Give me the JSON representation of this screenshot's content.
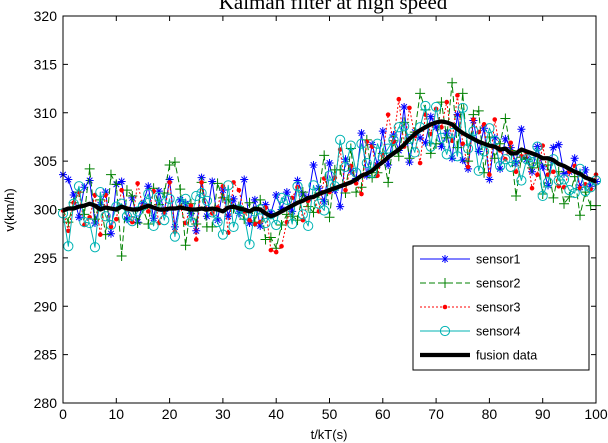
{
  "chart_data": {
    "type": "line",
    "title": "Kalman filter at high speed",
    "xlabel": "t/kT(s)",
    "ylabel": "v(km/h)",
    "xlim": [
      0,
      100
    ],
    "ylim": [
      280,
      320
    ],
    "xticks": [
      "0",
      "10",
      "20",
      "30",
      "40",
      "50",
      "60",
      "70",
      "80",
      "90",
      "100"
    ],
    "yticks": [
      "280",
      "285",
      "290",
      "295",
      "300",
      "305",
      "310",
      "315",
      "320"
    ],
    "grid": false,
    "legend_position": "bottom-right",
    "x": [
      0,
      1,
      2,
      3,
      4,
      5,
      6,
      7,
      8,
      9,
      10,
      11,
      12,
      13,
      14,
      15,
      16,
      17,
      18,
      19,
      20,
      21,
      22,
      23,
      24,
      25,
      26,
      27,
      28,
      29,
      30,
      31,
      32,
      33,
      34,
      35,
      36,
      37,
      38,
      39,
      40,
      41,
      42,
      43,
      44,
      45,
      46,
      47,
      48,
      49,
      50,
      51,
      52,
      53,
      54,
      55,
      56,
      57,
      58,
      59,
      60,
      61,
      62,
      63,
      64,
      65,
      66,
      67,
      68,
      69,
      70,
      71,
      72,
      73,
      74,
      75,
      76,
      77,
      78,
      79,
      80,
      81,
      82,
      83,
      84,
      85,
      86,
      87,
      88,
      89,
      90,
      91,
      92,
      93,
      94,
      95,
      96,
      97,
      98,
      99,
      100
    ],
    "series": [
      {
        "name": "sensor1",
        "color": "#0000ff",
        "style": "solid",
        "marker": "asterisk",
        "values": [
          303.6,
          303.1,
          301.5,
          299.2,
          302.3,
          303.0,
          298.6,
          300.5,
          301.8,
          297.5,
          302.6,
          302.9,
          299.0,
          301.2,
          298.7,
          300.6,
          302.4,
          299.1,
          301.9,
          299.8,
          303.1,
          298.2,
          301.0,
          300.6,
          299.6,
          297.8,
          303.3,
          299.3,
          302.9,
          298.9,
          302.0,
          299.3,
          301.1,
          299.6,
          303.1,
          298.6,
          301.0,
          298.3,
          300.5,
          299.6,
          301.5,
          300.0,
          301.8,
          299.8,
          303.0,
          301.6,
          301.2,
          304.6,
          302.2,
          300.8,
          304.8,
          302.0,
          300.3,
          305.2,
          304.0,
          303.2,
          307.9,
          303.5,
          306.7,
          304.6,
          308.1,
          304.6,
          307.7,
          306.1,
          310.6,
          304.9,
          308.0,
          307.4,
          306.9,
          309.6,
          308.5,
          306.5,
          307.9,
          305.3,
          309.8,
          305.1,
          304.2,
          309.2,
          306.0,
          308.4,
          303.1,
          307.4,
          304.2,
          307.3,
          306.4,
          304.8,
          308.3,
          305.2,
          303.9,
          306.5,
          304.4,
          302.5,
          306.4,
          306.7,
          303.7,
          303.9,
          305.3,
          302.3,
          304.1,
          302.4,
          302.9
        ]
      },
      {
        "name": "sensor2",
        "color": "#008000",
        "style": "dashed",
        "marker": "plus",
        "values": [
          300.0,
          298.7,
          300.7,
          301.8,
          299.5,
          304.2,
          299.0,
          301.0,
          297.4,
          303.6,
          302.6,
          295.2,
          302.0,
          301.4,
          298.6,
          300.1,
          298.5,
          302.2,
          300.5,
          301.7,
          304.6,
          304.9,
          302.1,
          296.3,
          300.6,
          298.5,
          302.8,
          298.2,
          298.2,
          302.7,
          301.2,
          301.0,
          300.1,
          300.3,
          299.0,
          300.7,
          298.7,
          301.0,
          296.9,
          297.1,
          296.0,
          298.4,
          299.5,
          299.3,
          298.9,
          301.8,
          300.3,
          299.7,
          301.7,
          305.6,
          299.2,
          304.1,
          304.1,
          301.7,
          306.3,
          301.8,
          302.3,
          307.2,
          303.3,
          303.8,
          305.8,
          302.8,
          307.1,
          305.5,
          309.0,
          305.3,
          308.0,
          312.0,
          310.3,
          305.8,
          306.8,
          311.1,
          307.4,
          313.1,
          306.4,
          312.0,
          305.0,
          309.8,
          310.2,
          303.8,
          307.5,
          305.3,
          306.8,
          309.4,
          306.1,
          301.4,
          305.4,
          305.2,
          304.3,
          304.8,
          301.6,
          304.6,
          301.2,
          303.9,
          300.6,
          301.3,
          303.4,
          299.4,
          301.8,
          300.4,
          300.4
        ]
      },
      {
        "name": "sensor3",
        "color": "#ff0000",
        "style": "dotted",
        "marker": "dot",
        "values": [
          299.9,
          297.8,
          300.7,
          301.8,
          298.4,
          299.2,
          301.5,
          297.4,
          301.5,
          298.2,
          299.0,
          302.0,
          300.1,
          298.7,
          302.7,
          300.3,
          299.8,
          301.9,
          298.6,
          299.7,
          302.8,
          297.7,
          300.3,
          298.6,
          300.4,
          296.9,
          302.8,
          300.0,
          299.6,
          300.2,
          302.4,
          297.6,
          302.8,
          302.0,
          299.8,
          298.9,
          298.5,
          298.7,
          300.2,
          295.8,
          295.6,
          296.2,
          298.7,
          301.2,
          302.3,
          298.9,
          300.9,
          301.3,
          299.8,
          303.2,
          301.8,
          303.3,
          306.2,
          302.0,
          304.5,
          302.7,
          301.6,
          307.0,
          306.5,
          303.5,
          305.6,
          309.8,
          307.0,
          311.4,
          306.5,
          310.5,
          307.6,
          304.8,
          309.8,
          307.8,
          310.4,
          308.5,
          311.1,
          307.1,
          311.8,
          306.8,
          304.4,
          309.3,
          308.0,
          308.8,
          303.6,
          309.3,
          306.1,
          305.2,
          306.9,
          303.9,
          305.5,
          305.8,
          302.2,
          303.6,
          306.6,
          303.6,
          303.9,
          302.4,
          302.3,
          303.9,
          304.5,
          302.2,
          302.6,
          302.1,
          303.6
        ]
      },
      {
        "name": "sensor4",
        "color": "#00b3b3",
        "style": "solid",
        "marker": "circle",
        "values": [
          299.6,
          296.2,
          300.6,
          302.4,
          298.7,
          298.6,
          296.1,
          301.8,
          299.3,
          298.4,
          300.3,
          300.6,
          299.3,
          298.8,
          299.8,
          300.4,
          301.6,
          298.3,
          301.3,
          298.9,
          301.1,
          297.2,
          300.7,
          301.1,
          298.7,
          301.4,
          301.7,
          300.9,
          299.7,
          298.7,
          297.4,
          302.5,
          298.2,
          300.0,
          299.4,
          296.4,
          299.8,
          300.0,
          298.6,
          299.5,
          298.4,
          301.2,
          301.0,
          298.5,
          302.4,
          299.5,
          298.3,
          302.5,
          300.6,
          299.9,
          303.5,
          302.4,
          307.2,
          304.4,
          306.6,
          303.8,
          306.8,
          304.8,
          303.8,
          306.8,
          305.4,
          306.3,
          307.2,
          308.5,
          308.6,
          307.3,
          305.9,
          308.5,
          310.7,
          306.5,
          310.6,
          307.4,
          305.7,
          307.9,
          305.5,
          310.5,
          306.3,
          308.1,
          304.0,
          306.0,
          308.4,
          307.1,
          304.5,
          305.2,
          304.4,
          305.3,
          303.0,
          305.2,
          304.9,
          306.5,
          301.4,
          302.8,
          305.2,
          303.0,
          303.1,
          302.0,
          301.7,
          304.2,
          301.9,
          302.3,
          303.0
        ]
      },
      {
        "name": "fusion data",
        "color": "#000000",
        "style": "thick",
        "marker": "none",
        "values": [
          299.9,
          300.1,
          300.1,
          300.3,
          300.4,
          300.6,
          300.4,
          300.0,
          300.2,
          300.1,
          300.0,
          300.3,
          300.1,
          300.0,
          300.0,
          300.2,
          300.4,
          300.2,
          300.0,
          300.0,
          300.1,
          300.1,
          300.2,
          300.1,
          300.0,
          300.0,
          300.1,
          300.0,
          300.1,
          300.0,
          299.8,
          300.2,
          300.3,
          300.1,
          300.0,
          299.8,
          300.1,
          300.0,
          299.6,
          299.3,
          299.5,
          299.8,
          300.1,
          300.4,
          300.7,
          300.9,
          301.2,
          301.3,
          301.6,
          301.8,
          302.0,
          302.2,
          302.4,
          302.6,
          302.8,
          303.1,
          303.5,
          303.7,
          304.0,
          304.5,
          304.9,
          305.4,
          305.8,
          306.2,
          306.7,
          307.3,
          307.8,
          308.2,
          308.5,
          308.8,
          309.0,
          309.1,
          309.0,
          308.8,
          308.3,
          307.9,
          307.6,
          307.3,
          307.0,
          306.8,
          306.6,
          306.5,
          306.2,
          306.3,
          305.8,
          305.8,
          306.2,
          306.0,
          305.8,
          305.6,
          305.3,
          305.3,
          305.1,
          304.7,
          304.5,
          304.2,
          303.9,
          303.7,
          303.3,
          303.1,
          302.9
        ]
      }
    ]
  }
}
